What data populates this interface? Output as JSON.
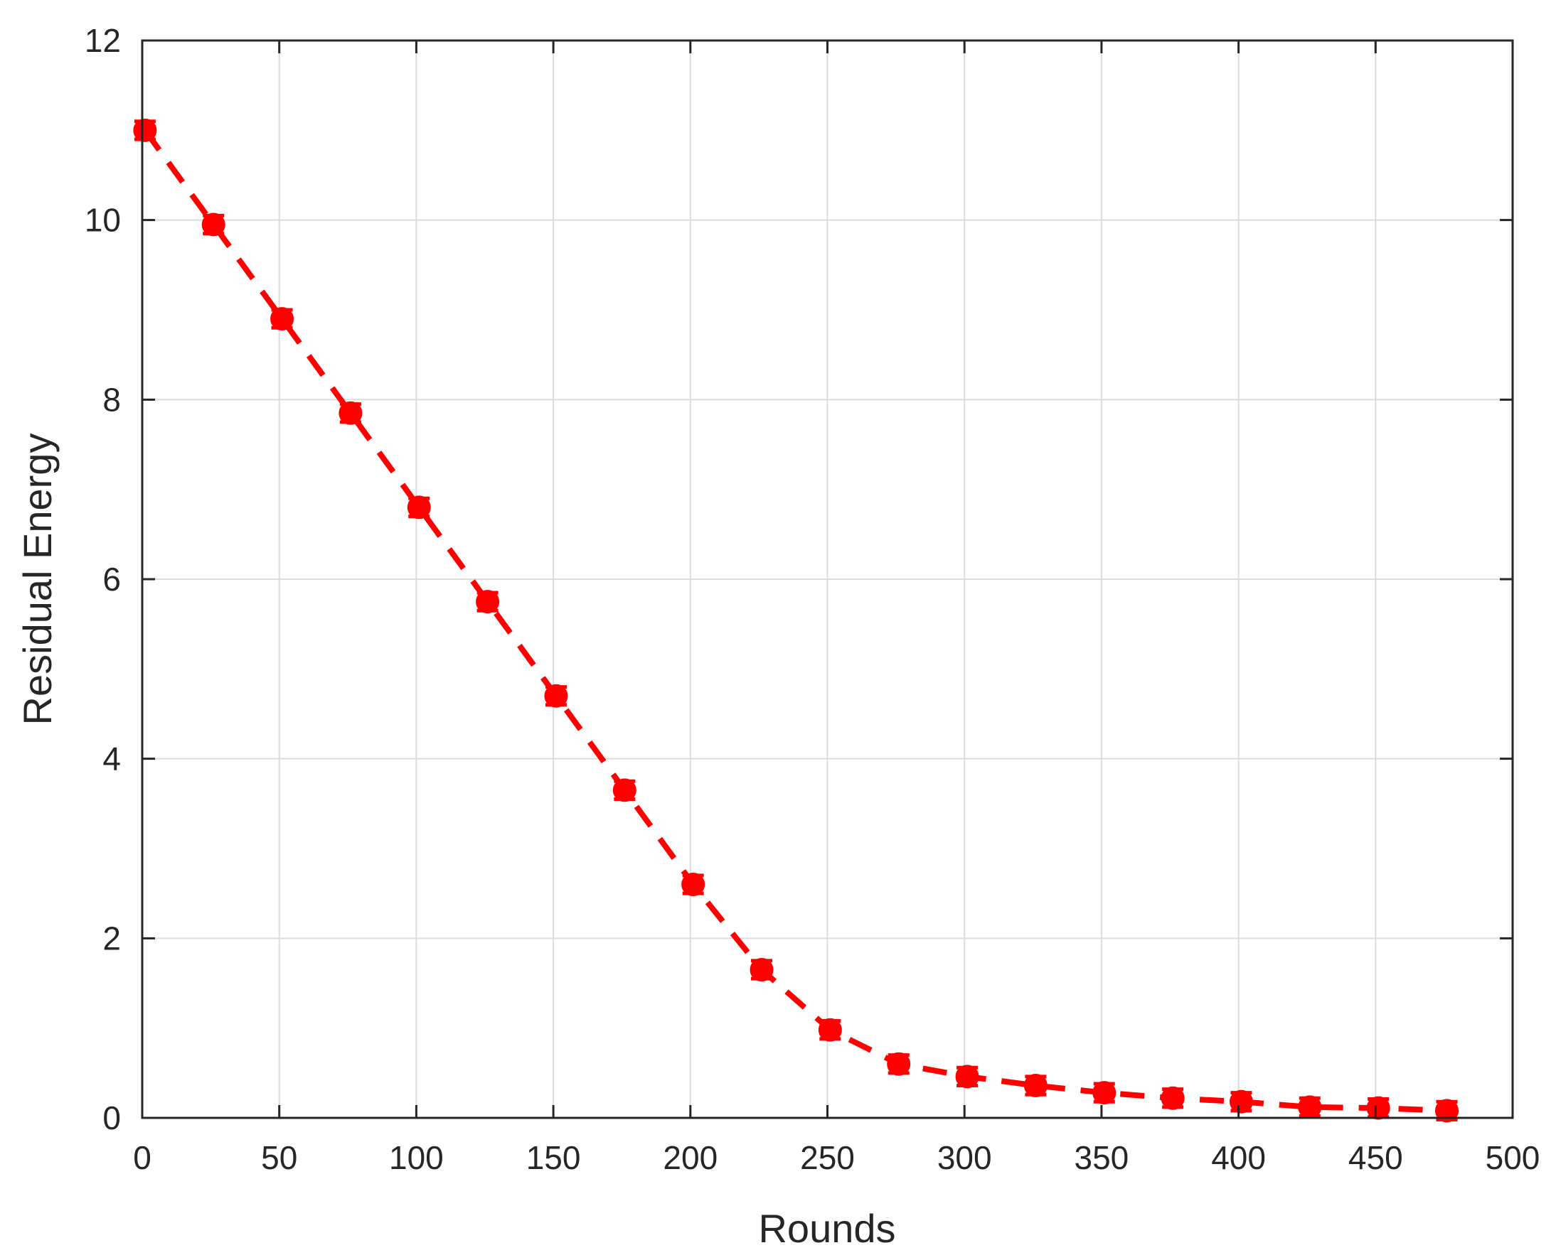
{
  "chart_data": {
    "type": "line",
    "xlabel": "Rounds",
    "ylabel": "Residual Energy",
    "xlim": [
      0,
      500
    ],
    "ylim": [
      0,
      12
    ],
    "xticks": [
      0,
      50,
      100,
      150,
      200,
      250,
      300,
      350,
      400,
      450,
      500
    ],
    "yticks": [
      0,
      2,
      4,
      6,
      8,
      10,
      12
    ],
    "xtick_labels": [
      "0",
      "50",
      "100",
      "150",
      "200",
      "250",
      "300",
      "350",
      "400",
      "450",
      "500"
    ],
    "ytick_labels": [
      "0",
      "2",
      "4",
      "6",
      "8",
      "10",
      "12"
    ],
    "grid": true,
    "series": [
      {
        "color": "#ff0000",
        "line_style": "dashed",
        "marker": "circle",
        "error_bars": true,
        "x": [
          1,
          26,
          51,
          76,
          101,
          126,
          151,
          176,
          201,
          226,
          251,
          276,
          301,
          326,
          351,
          376,
          401,
          426,
          451,
          476
        ],
        "y": [
          11.0,
          9.95,
          8.9,
          7.85,
          6.8,
          5.75,
          4.7,
          3.65,
          2.6,
          1.65,
          0.98,
          0.6,
          0.46,
          0.36,
          0.28,
          0.22,
          0.18,
          0.12,
          0.11,
          0.08
        ],
        "error": [
          0.1,
          0.1,
          0.1,
          0.1,
          0.1,
          0.1,
          0.1,
          0.1,
          0.1,
          0.1,
          0.1,
          0.1,
          0.1,
          0.1,
          0.1,
          0.1,
          0.1,
          0.1,
          0.1,
          0.1
        ]
      }
    ]
  }
}
